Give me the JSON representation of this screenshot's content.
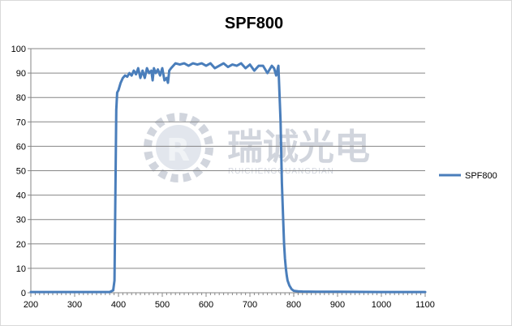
{
  "chart_data": {
    "type": "line",
    "title": "SPF800",
    "xlabel": "",
    "ylabel": "",
    "xlim": [
      200,
      1100
    ],
    "ylim": [
      0,
      100
    ],
    "xticks": [
      200,
      300,
      400,
      500,
      600,
      700,
      800,
      900,
      1000,
      1100
    ],
    "yticks": [
      0,
      10,
      20,
      30,
      40,
      50,
      60,
      70,
      80,
      90,
      100
    ],
    "grid": "horizontal",
    "legend": "right",
    "colors": {
      "series": "#4a7ebb",
      "grid": "#868686",
      "axis": "#868686",
      "watermark": "#c9ced8"
    },
    "watermark": {
      "icon": "gear-r-logo-icon",
      "cn": "瑞诚光电",
      "en": "RUICHENGGUANGDIAN"
    },
    "series": [
      {
        "name": "SPF800",
        "x": [
          200,
          300,
          380,
          388,
          391,
          393,
          395,
          397,
          400,
          405,
          410,
          415,
          420,
          425,
          430,
          435,
          440,
          445,
          450,
          455,
          460,
          465,
          470,
          475,
          478,
          481,
          485,
          490,
          495,
          500,
          505,
          510,
          513,
          516,
          520,
          525,
          530,
          540,
          550,
          560,
          570,
          580,
          590,
          600,
          610,
          620,
          630,
          640,
          650,
          660,
          670,
          680,
          690,
          700,
          710,
          720,
          730,
          740,
          750,
          755,
          760,
          765,
          770,
          773,
          776,
          778,
          780,
          782,
          784,
          786,
          790,
          795,
          800,
          810,
          820,
          850,
          900,
          1000,
          1100
        ],
        "values": [
          0.3,
          0.3,
          0.3,
          1,
          5,
          40,
          75,
          82,
          83,
          86,
          88,
          89,
          88.5,
          90,
          89,
          91,
          89.5,
          92,
          88,
          91,
          88,
          92,
          90,
          91,
          87,
          92,
          90,
          91.5,
          89,
          92,
          87,
          88,
          86,
          91,
          92,
          93,
          94,
          93.5,
          94,
          93,
          94,
          93.5,
          94,
          93,
          94,
          92,
          93,
          94,
          92.5,
          93.5,
          93,
          94,
          92,
          93.5,
          91,
          93,
          93,
          90,
          93,
          92,
          89,
          93,
          70,
          45,
          30,
          20,
          14,
          10,
          7,
          5,
          3,
          1.5,
          0.8,
          0.6,
          0.5,
          0.4,
          0.4,
          0.3,
          0.3
        ]
      }
    ]
  }
}
